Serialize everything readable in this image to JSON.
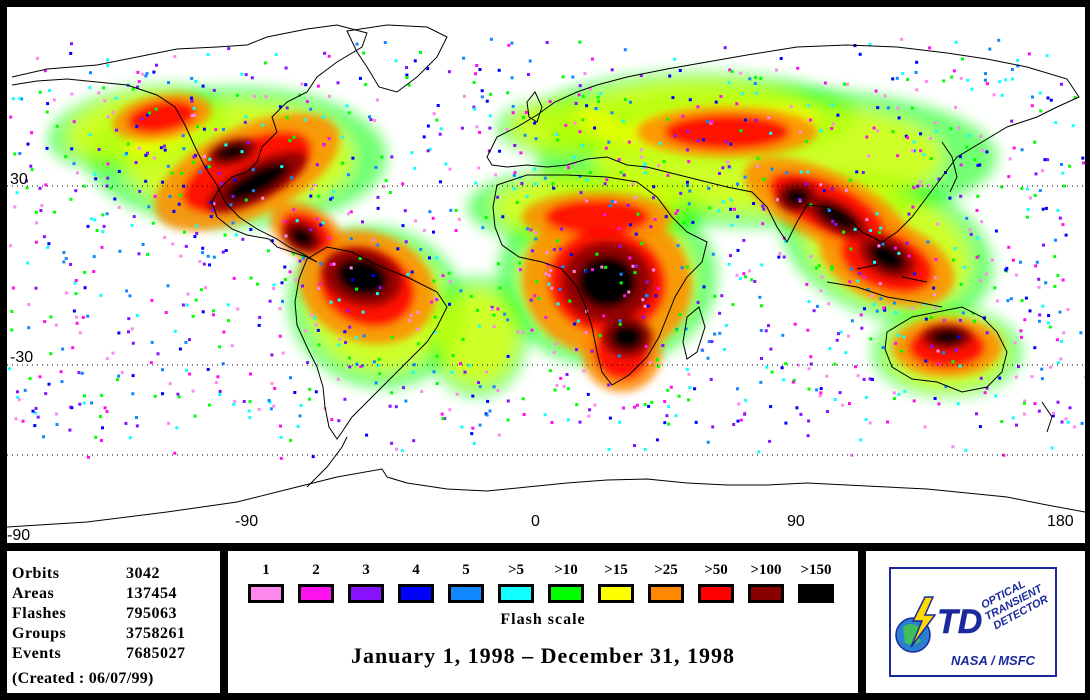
{
  "map": {
    "lon_ticks": [
      "-90",
      "0",
      "90",
      "180"
    ],
    "lat_ticks": [
      "30",
      "-30",
      "-90"
    ],
    "colors": {
      "ocean": "#ffffff",
      "coast": "#000000",
      "grid": "#000000"
    }
  },
  "stats": {
    "rows": [
      {
        "label": "Orbits",
        "value": "3042"
      },
      {
        "label": "Areas",
        "value": "137454"
      },
      {
        "label": "Flashes",
        "value": "795063"
      },
      {
        "label": "Groups",
        "value": "3758261"
      },
      {
        "label": "Events",
        "value": "7685027"
      }
    ],
    "created": "(Created : 06/07/99)"
  },
  "scale": {
    "items": [
      {
        "label": "1",
        "color": "#ff88ee"
      },
      {
        "label": "2",
        "color": "#ff11ee"
      },
      {
        "label": "3",
        "color": "#8811ff"
      },
      {
        "label": "4",
        "color": "#0000ff"
      },
      {
        "label": "5",
        "color": "#1188ff"
      },
      {
        "label": ">5",
        "color": "#11ffff"
      },
      {
        "label": ">10",
        "color": "#00ff00"
      },
      {
        "label": ">15",
        "color": "#ffff00"
      },
      {
        "label": ">25",
        "color": "#ff8800"
      },
      {
        "label": ">50",
        "color": "#ff0000"
      },
      {
        "label": ">100",
        "color": "#880000"
      },
      {
        "label": ">150",
        "color": "#000000"
      }
    ],
    "title": "Flash scale",
    "date_range": "January 1, 1998 – December 31, 1998"
  },
  "logo": {
    "text_lines": [
      "OPTICAL",
      "TRANSIENT",
      "DETECTOR"
    ],
    "monogram": "OTD",
    "caption": "NASA / MSFC",
    "colors": {
      "primary": "#1a2a9c",
      "accent": "#ffd800",
      "earth": "#2a7fd0"
    }
  }
}
